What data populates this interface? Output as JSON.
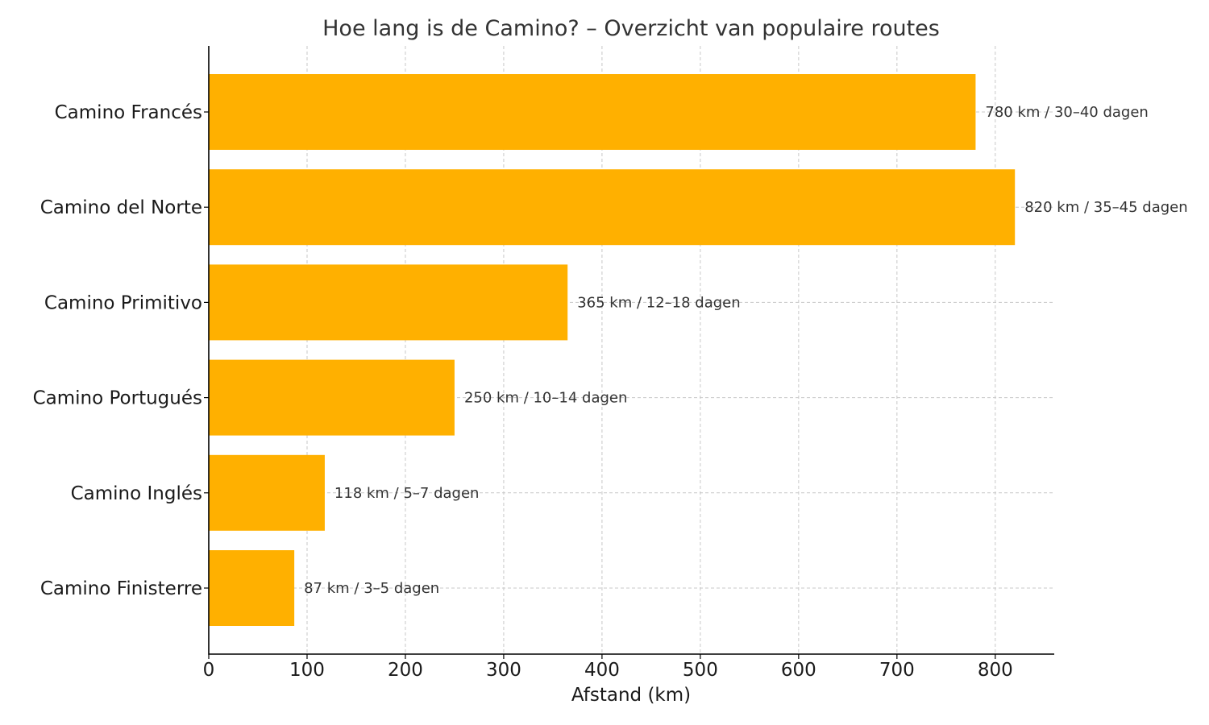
{
  "chart_data": {
    "type": "bar",
    "orientation": "horizontal",
    "title": "Hoe lang is de Camino? – Overzicht van populaire routes",
    "xlabel": "Afstand (km)",
    "ylabel": "",
    "xlim": [
      0,
      860
    ],
    "xticks": [
      0,
      100,
      200,
      300,
      400,
      500,
      600,
      700,
      800
    ],
    "grid": true,
    "bar_color": "#FFB000",
    "categories": [
      "Camino Francés",
      "Camino del Norte",
      "Camino Primitivo",
      "Camino Portugués",
      "Camino Inglés",
      "Camino Finisterre"
    ],
    "values": [
      780,
      820,
      365,
      250,
      118,
      87
    ],
    "data_labels": [
      "780 km / 30–40 dagen",
      "820 km / 35–45 dagen",
      "365 km / 12–18 dagen",
      "250 km / 10–14 dagen",
      "118 km / 5–7 dagen",
      "87 km / 3–5 dagen"
    ]
  }
}
